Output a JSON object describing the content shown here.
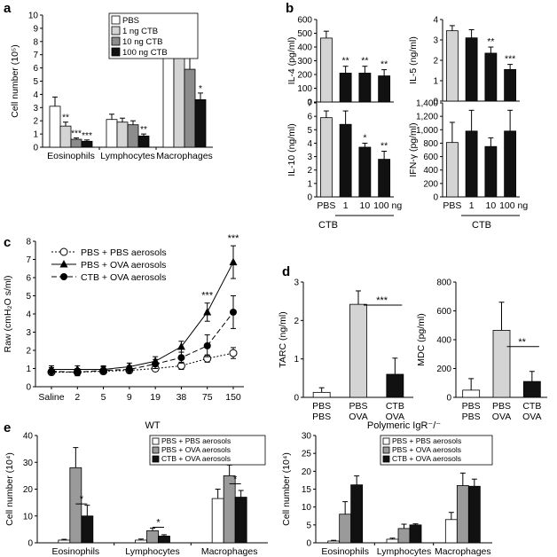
{
  "chart_data": [
    {
      "id": "a",
      "panel_label": "a",
      "type": "bar",
      "ylabel": "Cell number (10⁵)",
      "ylim": [
        0,
        10
      ],
      "yticks": [
        0,
        1,
        2,
        3,
        4,
        5,
        6,
        7,
        8,
        9,
        10
      ],
      "categories": [
        "Eosinophils",
        "Lymphocytes",
        "Macrophages"
      ],
      "series": [
        {
          "name": "PBS",
          "color": "#ffffff",
          "values": [
            3.1,
            2.1,
            8.0
          ],
          "errors": [
            0.7,
            0.4,
            1.5
          ],
          "sig": [
            "",
            "",
            ""
          ]
        },
        {
          "name": "1 ng CTB",
          "color": "#d4d4d4",
          "values": [
            1.6,
            1.9,
            6.9
          ],
          "errors": [
            0.3,
            0.3,
            1.0
          ],
          "sig": [
            "**",
            "",
            ""
          ]
        },
        {
          "name": "10 ng CTB",
          "color": "#8c8c8c",
          "values": [
            0.6,
            1.7,
            5.9
          ],
          "errors": [
            0.1,
            0.3,
            1.3
          ],
          "sig": [
            "***",
            "",
            ""
          ]
        },
        {
          "name": "100 ng CTB",
          "color": "#111111",
          "values": [
            0.45,
            0.85,
            3.6
          ],
          "errors": [
            0.1,
            0.15,
            0.5
          ],
          "sig": [
            "***",
            "**",
            "*"
          ]
        }
      ]
    },
    {
      "id": "b1",
      "panel_label": "b",
      "type": "bar",
      "ylabel": "IL-4 (pg/ml)",
      "ylim": [
        0,
        600
      ],
      "yticks": [
        0,
        100,
        200,
        300,
        400,
        500,
        600
      ],
      "yticklabels": [
        "0",
        "100",
        "200",
        "300",
        "400",
        "500",
        "600"
      ],
      "categories": [
        "PBS",
        "1",
        "10",
        "100 ng"
      ],
      "colors": [
        "#d4d4d4",
        "#111111",
        "#111111",
        "#111111"
      ],
      "values": [
        465,
        210,
        210,
        190
      ],
      "errors": [
        50,
        50,
        50,
        45
      ],
      "sig": [
        "",
        "**",
        "**",
        "**"
      ]
    },
    {
      "id": "b2",
      "type": "bar",
      "ylabel": "IL-5 (ng/ml)",
      "ylim": [
        0,
        4
      ],
      "yticks": [
        0,
        1,
        2,
        3,
        4
      ],
      "yticklabels": [
        "0",
        "1",
        "2",
        "3",
        "4"
      ],
      "categories": [
        "PBS",
        "1",
        "10",
        "100 ng"
      ],
      "colors": [
        "#d4d4d4",
        "#111111",
        "#111111",
        "#111111"
      ],
      "values": [
        3.45,
        3.1,
        2.35,
        1.55
      ],
      "errors": [
        0.25,
        0.4,
        0.3,
        0.25
      ],
      "sig": [
        "",
        "",
        "**",
        "***"
      ]
    },
    {
      "id": "b3",
      "type": "bar",
      "ylabel": "IL-10 (ng/ml)",
      "ylim": [
        0,
        7
      ],
      "yticks": [
        0,
        1,
        2,
        3,
        4,
        5,
        6,
        7
      ],
      "yticklabels": [
        "0",
        "1",
        "2",
        "3",
        "4",
        "5",
        "6",
        "7"
      ],
      "categories": [
        "PBS",
        "1",
        "10",
        "100 ng"
      ],
      "colors": [
        "#d4d4d4",
        "#111111",
        "#111111",
        "#111111"
      ],
      "values": [
        5.9,
        5.4,
        3.7,
        2.8
      ],
      "errors": [
        0.5,
        1.0,
        0.3,
        0.6
      ],
      "sig": [
        "",
        "",
        "*",
        "**"
      ]
    },
    {
      "id": "b4",
      "type": "bar",
      "ylabel": "IFN-γ (pg/ml)",
      "ylim": [
        0,
        1400
      ],
      "yticks": [
        0,
        200,
        400,
        600,
        800,
        1000,
        1200,
        1400
      ],
      "yticklabels": [
        "0",
        "200",
        "400",
        "600",
        "800",
        "1,000",
        "1,200",
        "1,400"
      ],
      "categories": [
        "PBS",
        "1",
        "10",
        "100 ng"
      ],
      "colors": [
        "#d4d4d4",
        "#111111",
        "#111111",
        "#111111"
      ],
      "values": [
        810,
        980,
        750,
        980
      ],
      "errors": [
        300,
        310,
        130,
        310
      ],
      "sig": [
        "",
        "",
        "",
        ""
      ]
    },
    {
      "id": "c",
      "panel_label": "c",
      "type": "line",
      "ylabel": "Raw (cmH₂O s/ml)",
      "ylim": [
        0,
        8
      ],
      "yticks": [
        0,
        1,
        2,
        3,
        4,
        5,
        6,
        7,
        8
      ],
      "x": [
        "Saline",
        "2",
        "5",
        "9",
        "19",
        "38",
        "75",
        "150"
      ],
      "series": [
        {
          "name": "PBS + PBS aerosols",
          "marker": "open-circle",
          "dash": "2,2",
          "values": [
            0.8,
            0.8,
            0.85,
            0.9,
            1.0,
            1.15,
            1.55,
            1.85
          ],
          "errors": [
            0.15,
            0.15,
            0.15,
            0.15,
            0.15,
            0.2,
            0.2,
            0.3
          ]
        },
        {
          "name": "PBS + OVA aerosols",
          "marker": "filled-triangle",
          "dash": "",
          "values": [
            0.95,
            0.95,
            0.95,
            1.1,
            1.4,
            2.2,
            4.1,
            6.85
          ],
          "errors": [
            0.2,
            0.2,
            0.2,
            0.2,
            0.25,
            0.3,
            0.5,
            0.9
          ]
        },
        {
          "name": "CTB + OVA aerosols",
          "marker": "filled-circle",
          "dash": "6,3",
          "values": [
            0.85,
            0.8,
            0.9,
            0.95,
            1.25,
            1.6,
            2.25,
            4.1
          ],
          "errors": [
            0.2,
            0.2,
            0.2,
            0.2,
            0.25,
            0.3,
            0.6,
            0.9
          ]
        }
      ],
      "sig": [
        "",
        "",
        "",
        "",
        "",
        "",
        "***",
        "***"
      ]
    },
    {
      "id": "d1",
      "panel_label": "d",
      "type": "bar",
      "ylabel": "TARC (ng/ml)",
      "ylim": [
        0,
        3
      ],
      "yticks": [
        0,
        1,
        2,
        3
      ],
      "yticklabels": [
        "0",
        "1",
        "2",
        "3"
      ],
      "categories": [
        "PBS\nPBS",
        "PBS\nOVA",
        "CTB\nOVA"
      ],
      "colors": [
        "#ffffff",
        "#d4d4d4",
        "#111111"
      ],
      "values": [
        0.13,
        2.42,
        0.6
      ],
      "errors": [
        0.12,
        0.35,
        0.42
      ],
      "bracket": {
        "from": 1,
        "to": 2,
        "label": "***"
      }
    },
    {
      "id": "d2",
      "type": "bar",
      "ylabel": "MDC (pg/ml)",
      "ylim": [
        0,
        800
      ],
      "yticks": [
        0,
        200,
        400,
        600,
        800
      ],
      "yticklabels": [
        "0",
        "200",
        "400",
        "600",
        "800"
      ],
      "categories": [
        "PBS\nPBS",
        "PBS\nOVA",
        "CTB\nOVA"
      ],
      "colors": [
        "#ffffff",
        "#d4d4d4",
        "#111111"
      ],
      "values": [
        50,
        465,
        110
      ],
      "errors": [
        80,
        195,
        70
      ],
      "bracket": {
        "from": 1,
        "to": 2,
        "label": "**"
      }
    },
    {
      "id": "e1",
      "panel_label": "e",
      "type": "bar",
      "title": "WT",
      "ylabel": "Cell number (10⁴)",
      "ylim": [
        0,
        40
      ],
      "yticks": [
        0,
        10,
        20,
        30,
        40
      ],
      "categories": [
        "Eosinophils",
        "Lymphocytes",
        "Macrophages"
      ],
      "series": [
        {
          "name": "PBS + PBS aerosols",
          "color": "#ffffff",
          "values": [
            1.0,
            1.0,
            16.5
          ],
          "errors": [
            0.3,
            0.4,
            3.5
          ]
        },
        {
          "name": "PBS + OVA aerosols",
          "color": "#9a9a9a",
          "values": [
            28.0,
            4.5,
            25.0
          ],
          "errors": [
            7.5,
            1.0,
            4.0
          ]
        },
        {
          "name": "CTB + OVA aerosols",
          "color": "#111111",
          "values": [
            10.0,
            2.5,
            17.0
          ],
          "errors": [
            4.0,
            0.5,
            2.5
          ]
        }
      ],
      "brackets": [
        {
          "group": 0,
          "label": "*",
          "value": 14.5
        },
        {
          "group": 1,
          "label": "*",
          "value": 5.8
        },
        {
          "group": 2,
          "label": "*",
          "value": 22.0
        }
      ]
    },
    {
      "id": "e2",
      "type": "bar",
      "title": "Polymeric IgR⁻/⁻",
      "ylabel": "Cell number (10⁴)",
      "ylim": [
        0,
        30
      ],
      "yticks": [
        0,
        5,
        10,
        15,
        20,
        25,
        30
      ],
      "categories": [
        "Eosinophils",
        "Lymphocytes",
        "Macrophages"
      ],
      "series": [
        {
          "name": "PBS + PBS aerosols",
          "color": "#ffffff",
          "values": [
            0.5,
            1.0,
            6.5
          ],
          "errors": [
            0.2,
            0.3,
            2.0
          ]
        },
        {
          "name": "PBS + OVA aerosols",
          "color": "#9a9a9a",
          "values": [
            8.0,
            4.0,
            16.0
          ],
          "errors": [
            3.5,
            1.2,
            3.5
          ]
        },
        {
          "name": "CTB + OVA aerosols",
          "color": "#111111",
          "values": [
            16.2,
            5.0,
            15.8
          ],
          "errors": [
            2.5,
            0.3,
            2.0
          ]
        }
      ]
    }
  ],
  "shared_labels": {
    "cytokine_group_label": "CTB",
    "cytokine_group_label_right": "CTB"
  }
}
